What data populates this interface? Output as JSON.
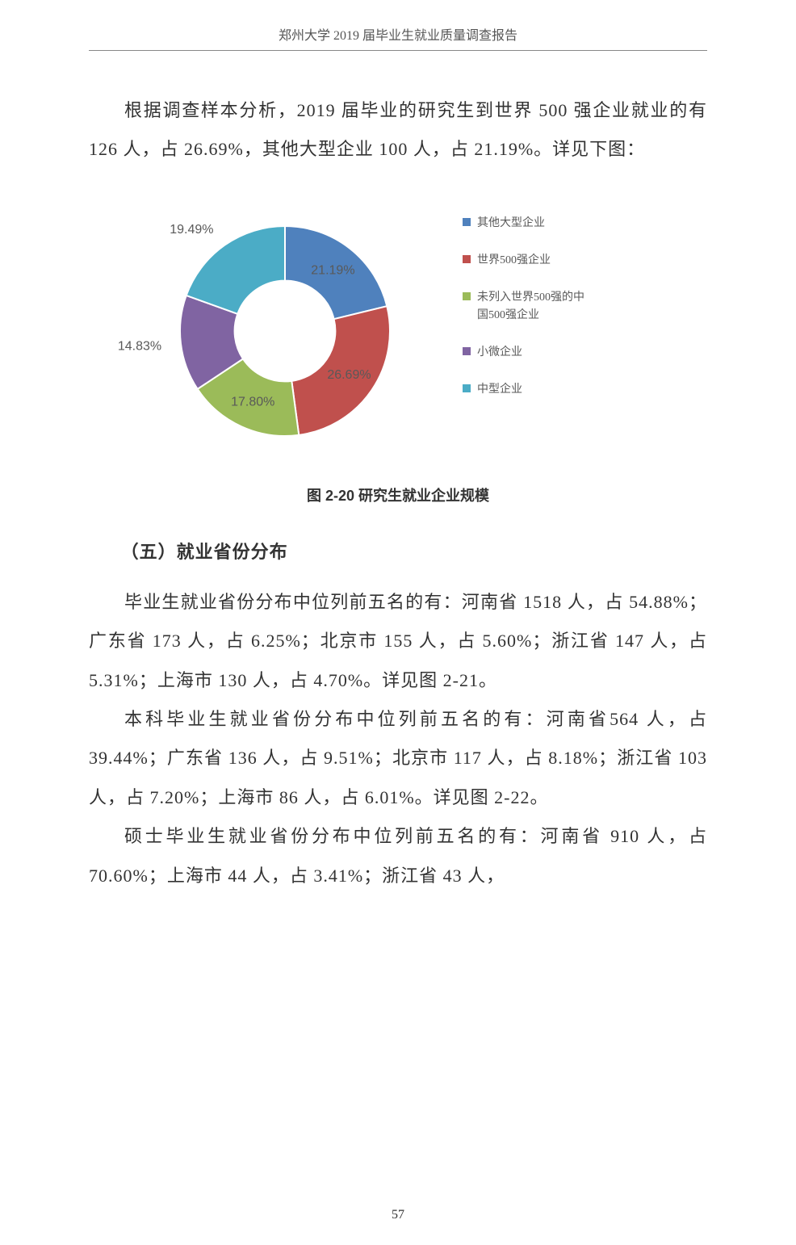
{
  "header": {
    "title": "郑州大学 2019 届毕业生就业质量调查报告"
  },
  "para1": "根据调查样本分析，2019 届毕业的研究生到世界 500 强企业就业的有 126 人，占 26.69%，其他大型企业 100 人，占 21.19%。详见下图：",
  "chart": {
    "type": "donut",
    "caption": "图 2-20  研究生就业企业规模",
    "background_color": "#ffffff",
    "inner_radius_ratio": 0.48,
    "outer_radius": 130,
    "slice_border_color": "#ffffff",
    "slice_border_width": 2,
    "label_fontsize": 16,
    "label_color": "#595959",
    "legend_fontsize": 14,
    "legend_color": "#595959",
    "legend_marker_size": 10,
    "start_angle_deg": -90,
    "slices": [
      {
        "label": "其他大型企业",
        "value": 21.19,
        "color": "#4f81bd",
        "display": "21.19%"
      },
      {
        "label": "世界500强企业",
        "value": 26.69,
        "color": "#c0504d",
        "display": "26.69%"
      },
      {
        "label": "未列入世界500强的中国500强企业",
        "value": 17.8,
        "color": "#9bbb59",
        "display": "17.80%"
      },
      {
        "label": "小微企业",
        "value": 14.83,
        "color": "#8064a2",
        "display": "14.83%"
      },
      {
        "label": "中型企业",
        "value": 19.49,
        "color": "#4bacc6",
        "display": "19.49%"
      }
    ],
    "legend_lines": [
      {
        "text": "其他大型企业",
        "color": "#4f81bd"
      },
      {
        "text": "世界500强企业",
        "color": "#c0504d"
      },
      {
        "text": "未列入世界500强的中",
        "color": "#9bbb59"
      },
      {
        "text": "国500强企业",
        "color": null
      },
      {
        "text": "小微企业",
        "color": "#8064a2"
      },
      {
        "text": "中型企业",
        "color": "#4bacc6"
      }
    ]
  },
  "section_title": "（五）就业省份分布",
  "para2": "毕业生就业省份分布中位列前五名的有：河南省 1518 人，占 54.88%；广东省 173 人，占 6.25%；北京市 155 人，占 5.60%；浙江省 147 人，占 5.31%；上海市 130 人，占 4.70%。详见图 2-21。",
  "para3": "本科毕业生就业省份分布中位列前五名的有：河南省564 人，占 39.44%；广东省 136 人，占 9.51%；北京市 117 人，占 8.18%；浙江省 103 人，占 7.20%；上海市 86 人，占 6.01%。详见图 2-22。",
  "para4": "硕士毕业生就业省份分布中位列前五名的有：河南省 910 人，占 70.60%；上海市 44 人，占 3.41%；浙江省 43 人，",
  "page_number": "57"
}
